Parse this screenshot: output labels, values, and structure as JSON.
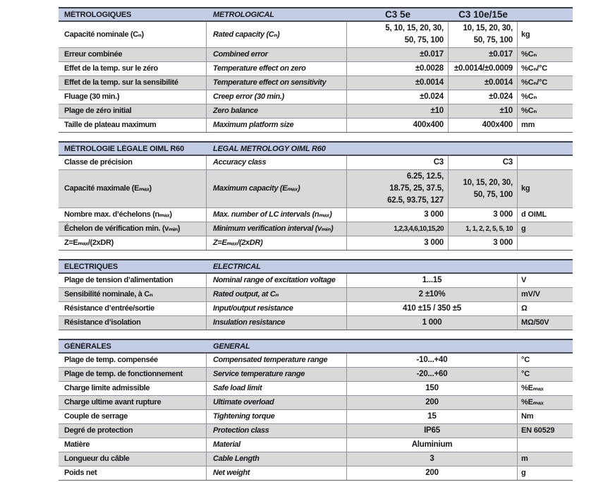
{
  "table": {
    "header_bg": "#c3cee6",
    "stripe_bg": "#d9d9d9",
    "border_dark": "#3e3e48",
    "border_light": "#94949c",
    "models": [
      "C3 5e",
      "C3 10e/15e"
    ],
    "sections": [
      {
        "title_fr": "MÉTROLOGIQUES",
        "title_en": "METROLOGICAL",
        "show_models": true,
        "rows": [
          {
            "fr": "Capacité nominale (Cₙ)",
            "en": "Rated capacity (Cₙ)",
            "v1": "5, 10, 15, 20, 30,\n50, 75, 100",
            "v2": "10, 15, 20, 30,\n50, 75, 100",
            "unit": "kg"
          },
          {
            "fr": "Erreur combinée",
            "en": "Combined error",
            "v1": "±0.017",
            "v2": "±0.017",
            "unit": "%Cₙ"
          },
          {
            "fr": "Effet de la temp. sur le zéro",
            "en": "Temperature effect on zero",
            "v1": "±0.0028",
            "v2": "±0.0014/±0.0009",
            "unit": "%Cₙ/°C"
          },
          {
            "fr": "Effet de la temp. sur la sensibilité",
            "en": "Temperature effect on sensitivity",
            "v1": "±0.0014",
            "v2": "±0.0014",
            "unit": "%Cₙ/°C"
          },
          {
            "fr": "Fluage (30 min.)",
            "en": "Creep error (30 min.)",
            "v1": "±0.024",
            "v2": "±0.024",
            "unit": "%Cₙ"
          },
          {
            "fr": "Plage de zéro initial",
            "en": "Zero balance",
            "v1": "±10",
            "v2": "±10",
            "unit": "%Cₙ"
          },
          {
            "fr": "Taille de plateau maximum",
            "en": "Maximum platform size",
            "v1": "400x400",
            "v2": "400x400",
            "unit": "mm"
          }
        ]
      },
      {
        "title_fr": "MÉTROLOGIE LÉGALE OIML R60",
        "title_en": "LEGAL METROLOGY OIML R60",
        "show_models": false,
        "rows": [
          {
            "fr": "Classe de précision",
            "en": "Accuracy class",
            "v1": "C3",
            "v2": "C3",
            "unit": ""
          },
          {
            "fr": "Capacité maximale (Eₘₐₓ)",
            "en": "Maximum capacity (Eₘₐₓ)",
            "v1": "6.25, 12.5,\n18.75, 25, 37.5,\n62.5, 93.75, 127",
            "v2": "10, 15, 20, 30,\n50, 75, 100",
            "unit": "kg"
          },
          {
            "fr": "Nombre max. d’échelons (nₘₐₓ)",
            "en": "Max. number of LC intervals (nₘₐₓ)",
            "v1": "3 000",
            "v2": "3 000",
            "unit": "d OIML"
          },
          {
            "fr": "Échelon de vérification min. (vₘᵢₙ)",
            "en": "Minimum verification interval (vₘᵢₙ)",
            "v1": "1,2,3,4,6,10,15,20",
            "v2": "1, 1, 2, 2, 5, 5, 10",
            "unit": "g",
            "small": true
          },
          {
            "fr": "Z=Eₘₐₓ/(2xDR)",
            "en": "Z=Eₘₐₓ/(2xDR)",
            "v1": "3 000",
            "v2": "3 000",
            "unit": ""
          }
        ]
      },
      {
        "title_fr": "ELECTRIQUES",
        "title_en": "ELECTRICAL",
        "show_models": false,
        "rows": [
          {
            "fr": "Plage de tension d’alimentation",
            "en": "Nominal range of excitation voltage",
            "value": "1...15",
            "unit": "V"
          },
          {
            "fr": "Sensibilité nominale, à Cₙ",
            "en": "Rated output, at Cₙ",
            "value": "2 ±10%",
            "unit": "mV/V"
          },
          {
            "fr": "Résistance d’entrée/sortie",
            "en": "Input/output resistance",
            "value": "410 ±15 / 350 ±5",
            "unit": "Ω"
          },
          {
            "fr": "Résistance d’isolation",
            "en": "Insulation resistance",
            "value": "1 000",
            "unit": "MΩ/50V"
          }
        ]
      },
      {
        "title_fr": "GÉNÉRALES",
        "title_en": "GENERAL",
        "show_models": false,
        "rows": [
          {
            "fr": "Plage de temp. compensée",
            "en": "Compensated temperature range",
            "value": "-10...+40",
            "unit": "°C"
          },
          {
            "fr": "Plage de temp. de fonctionnement",
            "en": "Service temperature range",
            "value": "-20...+60",
            "unit": "°C"
          },
          {
            "fr": "Charge limite admissible",
            "en": "Safe load limit",
            "value": "150",
            "unit": "%Eₘₐₓ"
          },
          {
            "fr": "Charge ultime avant rupture",
            "en": "Ultimate overload",
            "value": "200",
            "unit": "%Eₘₐₓ"
          },
          {
            "fr": "Couple de serrage",
            "en": "Tightening torque",
            "value": "15",
            "unit": "Nm"
          },
          {
            "fr": "Degré de protection",
            "en": "Protection class",
            "value": "IP65",
            "unit": "EN 60529"
          },
          {
            "fr": "Matière",
            "en": "Material",
            "value": "Aluminium",
            "unit": ""
          },
          {
            "fr": "Longueur du câble",
            "en": "Cable Length",
            "value": "3",
            "unit": "m"
          },
          {
            "fr": "Poids net",
            "en": "Net weight",
            "value": "200",
            "unit": "g"
          }
        ]
      }
    ]
  }
}
